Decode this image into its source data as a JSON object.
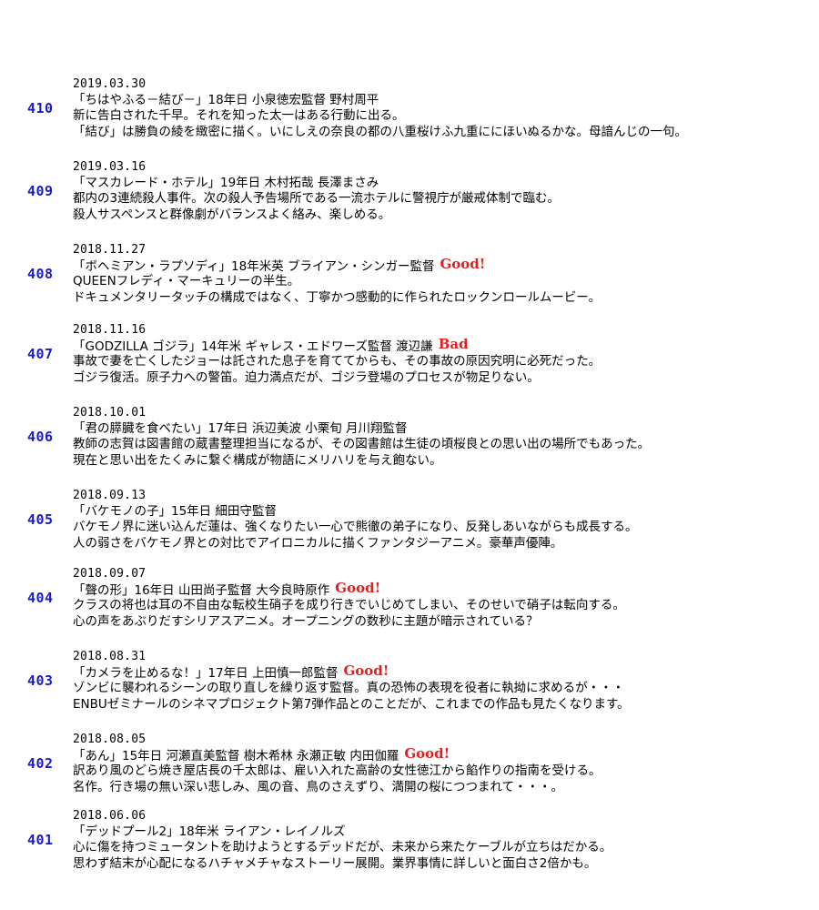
{
  "accent_colors": {
    "entry_number": "#1a1ac8",
    "rating": "#e02020"
  },
  "entries": [
    {
      "number": "410",
      "date": "2019.03.30",
      "title_line": "「ちはやふる－結び－」18年日 小泉徳宏監督 野村周平",
      "rating": "",
      "line1": "新に告白された千早。それを知った太一はある行動に出る。",
      "line2": "「結び」は勝負の綾を緻密に描く。いにしえの奈良の都の八重桜けふ九重ににほいぬるかな。母諳んじの一句。"
    },
    {
      "number": "409",
      "date": "2019.03.16",
      "title_line": "「マスカレード・ホテル」19年日 木村拓哉 長澤まさみ",
      "rating": "",
      "line1": "都内の3連続殺人事件。次の殺人予告場所である一流ホテルに警視庁が厳戒体制で臨む。",
      "line2": "殺人サスペンスと群像劇がバランスよく絡み、楽しめる。"
    },
    {
      "number": "408",
      "date": "2018.11.27",
      "title_line": "「ボヘミアン・ラプソディ」18年米英 ブライアン・シンガー監督",
      "rating": "Good!",
      "line1": "QUEENフレディ・マーキュリーの半生。",
      "line2": "ドキュメンタリータッチの構成ではなく、丁寧かつ感動的に作られたロックンロールムービー。"
    },
    {
      "number": "407",
      "date": "2018.11.16",
      "title_line": "「GODZILLA ゴジラ」14年米 ギャレス・エドワーズ監督 渡辺謙",
      "rating": "Bad",
      "line1": "事故で妻を亡くしたジョーは託された息子を育ててからも、その事故の原因究明に必死だった。",
      "line2": "ゴジラ復活。原子力への警笛。迫力満点だが、ゴジラ登場のプロセスが物足りない。"
    },
    {
      "number": "406",
      "date": "2018.10.01",
      "title_line": "「君の膵臓を食べたい」17年日 浜辺美波 小栗旬 月川翔監督",
      "rating": "",
      "line1": "教師の志賀は図書館の蔵書整理担当になるが、その図書館は生徒の頃桜良との思い出の場所でもあった。",
      "line2": "現在と思い出をたくみに繋ぐ構成が物語にメリハリを与え飽ない。"
    },
    {
      "number": "405",
      "date": "2018.09.13",
      "title_line": "「バケモノの子」15年日 細田守監督",
      "rating": "",
      "line1": "バケモノ界に迷い込んだ蓮は、強くなりたい一心で熊徹の弟子になり、反発しあいながらも成長する。",
      "line2": "人の弱さをバケモノ界との対比でアイロニカルに描くファンタジーアニメ。豪華声優陣。"
    },
    {
      "number": "404",
      "date": "2018.09.07",
      "title_line": "「聲の形」16年日 山田尚子監督 大今良時原作",
      "rating": "Good!",
      "line1": "クラスの将也は耳の不自由な転校生硝子を成り行きでいじめてしまい、そのせいで硝子は転向する。",
      "line2": "心の声をあぶりだすシリアスアニメ。オープニングの数秒に主題が暗示されている？"
    },
    {
      "number": "403",
      "date": "2018.08.31",
      "title_line": "「カメラを止めるな！」17年日 上田慎一郎監督",
      "rating": "Good!",
      "line1": "ゾンビに襲われるシーンの取り直しを繰り返す監督。真の恐怖の表現を役者に執拗に求めるが・・・",
      "line2": "ENBUゼミナールのシネマプロジェクト第7弾作品とのことだが、これまでの作品も見たくなります。"
    },
    {
      "number": "402",
      "date": "2018.08.05",
      "title_line": "「あん」15年日 河瀬直美監督 樹木希林 永瀬正敏 内田伽羅",
      "rating": "Good!",
      "line1": "訳あり風のどら焼き屋店長の千太郎は、雇い入れた高齢の女性徳江から餡作りの指南を受ける。",
      "line2": "名作。行き場の無い深い悲しみ、風の音、鳥のさえずり、満開の桜につつまれて・・・。"
    },
    {
      "number": "401",
      "date": "2018.06.06",
      "title_line": "「デッドプール2」18年米 ライアン・レイノルズ",
      "rating": "",
      "line1": "心に傷を持つミュータントを助けようとするデッドだが、未来から来たケーブルが立ちはだかる。",
      "line2": "思わず結末が心配になるハチャメチャなストーリー展開。業界事情に詳しいと面白さ2倍かも。"
    }
  ]
}
